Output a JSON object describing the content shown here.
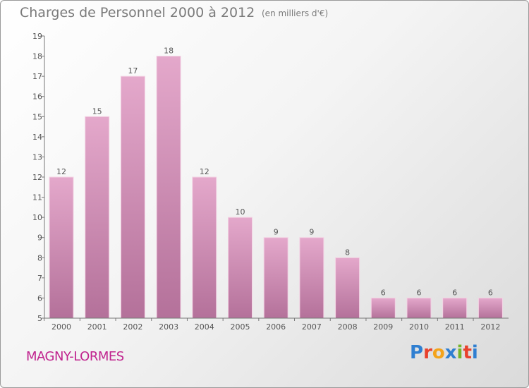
{
  "header": {
    "title": "Charges de Personnel 2000 à 2012",
    "unit": "(en milliers d'€)"
  },
  "footer": {
    "town": "MAGNY-LORMES",
    "logo": "Proxiti"
  },
  "colors": {
    "bar_top": "#e4a8cb",
    "bar_bottom": "#b4719a",
    "town": "#c0238e",
    "logo": [
      "#2f7fd1",
      "#e8412c",
      "#f3a31b",
      "#2f7fd1",
      "#74b52a",
      "#e8412c",
      "#2f7fd1"
    ]
  },
  "chart_data": {
    "type": "bar",
    "title": "Charges de Personnel 2000 à 2012",
    "ylabel": "",
    "xlabel": "",
    "ylim": [
      5,
      19
    ],
    "grid": false,
    "categories": [
      "2000",
      "2001",
      "2002",
      "2003",
      "2004",
      "2005",
      "2006",
      "2007",
      "2008",
      "2009",
      "2010",
      "2011",
      "2012"
    ],
    "values": [
      12,
      15,
      17,
      18,
      12,
      10,
      9,
      9,
      8,
      6,
      6,
      6,
      6
    ],
    "yticks": [
      5,
      6,
      7,
      8,
      9,
      10,
      11,
      12,
      13,
      14,
      15,
      16,
      17,
      18,
      19
    ]
  }
}
